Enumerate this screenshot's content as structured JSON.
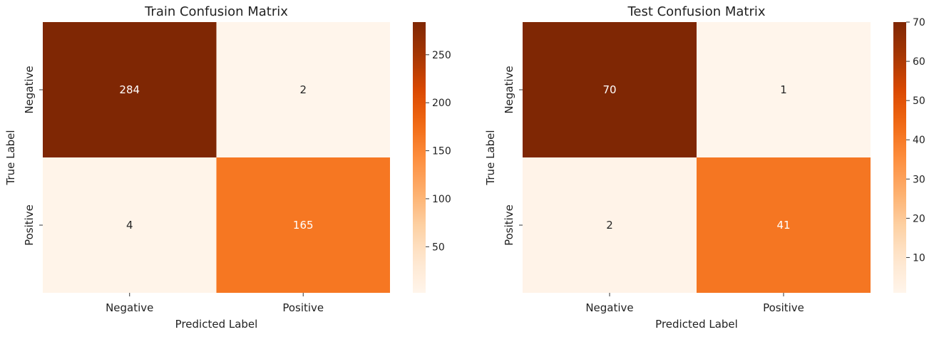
{
  "colormap": [
    "#fff5eb",
    "#fee6ce",
    "#fdd0a2",
    "#fdae6b",
    "#fd8d3c",
    "#f16913",
    "#d94801",
    "#a63603",
    "#7f2704"
  ],
  "chart_data": [
    {
      "type": "heatmap",
      "title": "Train Confusion Matrix",
      "xlabel": "Predicted Label",
      "ylabel": "True Label",
      "x_categories": [
        "Negative",
        "Positive"
      ],
      "y_categories": [
        "Negative",
        "Positive"
      ],
      "values": [
        [
          284,
          2
        ],
        [
          4,
          165
        ]
      ],
      "vmin": 2,
      "vmax": 284,
      "colorbar_ticks": [
        50,
        100,
        150,
        200,
        250
      ]
    },
    {
      "type": "heatmap",
      "title": "Test Confusion Matrix",
      "xlabel": "Predicted Label",
      "ylabel": "True Label",
      "x_categories": [
        "Negative",
        "Positive"
      ],
      "y_categories": [
        "Negative",
        "Positive"
      ],
      "values": [
        [
          70,
          1
        ],
        [
          2,
          41
        ]
      ],
      "vmin": 1,
      "vmax": 70,
      "colorbar_ticks": [
        10,
        20,
        30,
        40,
        50,
        60,
        70
      ]
    }
  ]
}
